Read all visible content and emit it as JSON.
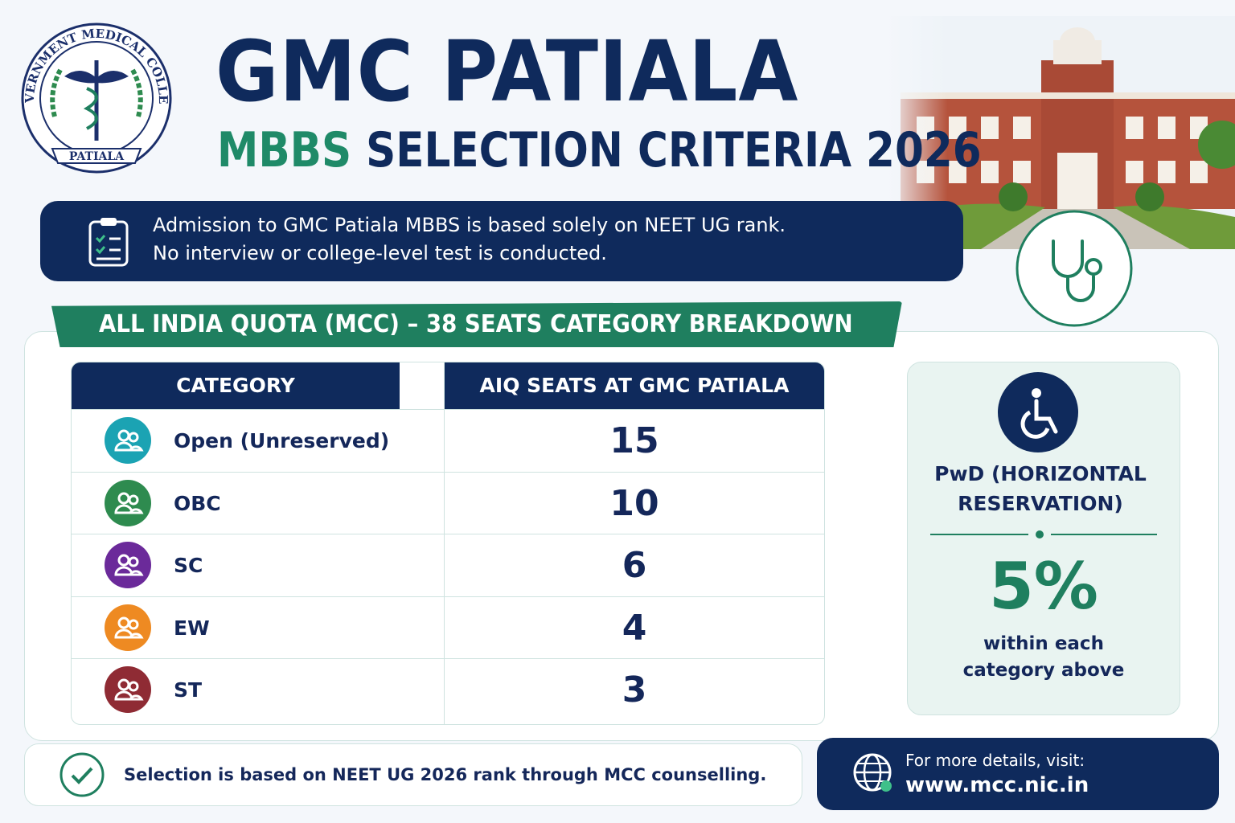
{
  "logo": {
    "arc_text": "GOVERNMENT MEDICAL COLLEGE",
    "ribbon_text": "PATIALA"
  },
  "header": {
    "title": "GMC PATIALA",
    "subtitle_highlight": "MBBS",
    "subtitle": "SELECTION CRITERIA 2026"
  },
  "info_banner": {
    "lines": [
      "Admission to GMC Patiala MBBS is based solely on NEET UG rank.",
      "No interview or college-level test is conducted."
    ]
  },
  "section": {
    "title": "ALL INDIA QUOTA (MCC) – 38 SEATS CATEGORY BREAKDOWN"
  },
  "table": {
    "headers": [
      "CATEGORY",
      "AIQ SEATS AT GMC PATIALA"
    ],
    "rows": [
      [
        "Open (Unreserved)",
        "15"
      ],
      [
        "OBC",
        "10"
      ],
      [
        "SC",
        "6"
      ],
      [
        "EW",
        "4"
      ],
      [
        "ST",
        "3"
      ]
    ]
  },
  "pwd": {
    "title": "PwD (HORIZONTAL RESERVATION)",
    "percent": "5%",
    "note": "within each category above"
  },
  "footer": {
    "note": "Selection is based on NEET UG 2026 rank through MCC counselling.",
    "details_label": "For more details, visit:",
    "url": "www.mcc.nic.in"
  }
}
